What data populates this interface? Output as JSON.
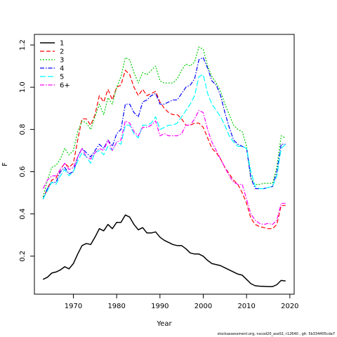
{
  "chart_data": {
    "type": "line",
    "title": "",
    "xlabel": "Year",
    "ylabel": "F",
    "xlim": [
      1961,
      2021
    ],
    "ylim": [
      0.02,
      1.25
    ],
    "xticks": [
      1970,
      1980,
      1990,
      2000,
      2010,
      2020
    ],
    "yticks": [
      0.2,
      0.4,
      0.6,
      0.8,
      1.0,
      1.2
    ],
    "ytick_labels": [
      "0.2",
      "0.4",
      "0.6",
      "0.8",
      "1.0",
      "1.2"
    ],
    "grid": false,
    "legend_position": "top-left",
    "x": [
      1963,
      1964,
      1965,
      1966,
      1967,
      1968,
      1969,
      1970,
      1971,
      1972,
      1973,
      1974,
      1975,
      1976,
      1977,
      1978,
      1979,
      1980,
      1981,
      1982,
      1983,
      1984,
      1985,
      1986,
      1987,
      1988,
      1989,
      1990,
      1991,
      1992,
      1993,
      1994,
      1995,
      1996,
      1997,
      1998,
      1999,
      2000,
      2001,
      2002,
      2003,
      2004,
      2005,
      2006,
      2007,
      2008,
      2009,
      2010,
      2011,
      2012,
      2013,
      2014,
      2015,
      2016,
      2017,
      2018,
      2019
    ],
    "series": [
      {
        "name": "1",
        "color": "#000000",
        "dash": "solid",
        "width": 1.5,
        "values": [
          0.09,
          0.1,
          0.12,
          0.125,
          0.135,
          0.15,
          0.14,
          0.165,
          0.21,
          0.25,
          0.26,
          0.255,
          0.29,
          0.33,
          0.32,
          0.35,
          0.33,
          0.36,
          0.36,
          0.395,
          0.385,
          0.35,
          0.325,
          0.335,
          0.31,
          0.31,
          0.315,
          0.29,
          0.275,
          0.265,
          0.255,
          0.25,
          0.25,
          0.235,
          0.215,
          0.21,
          0.21,
          0.2,
          0.18,
          0.165,
          0.16,
          0.155,
          0.145,
          0.135,
          0.125,
          0.115,
          0.11,
          0.09,
          0.07,
          0.06,
          0.058,
          0.057,
          0.056,
          0.056,
          0.065,
          0.085,
          0.082
        ]
      },
      {
        "name": "2",
        "color": "#ff0000",
        "dash": "6,3",
        "width": 1.2,
        "values": [
          0.47,
          0.52,
          0.56,
          0.57,
          0.61,
          0.64,
          0.62,
          0.64,
          0.75,
          0.85,
          0.85,
          0.82,
          0.87,
          0.96,
          0.93,
          0.99,
          0.94,
          1.0,
          1.01,
          1.08,
          1.06,
          1.0,
          0.96,
          0.99,
          0.96,
          0.97,
          0.98,
          0.93,
          0.9,
          0.88,
          0.87,
          0.87,
          0.85,
          0.82,
          0.82,
          0.83,
          0.83,
          0.81,
          0.76,
          0.71,
          0.69,
          0.66,
          0.62,
          0.59,
          0.56,
          0.54,
          0.5,
          0.45,
          0.38,
          0.35,
          0.34,
          0.335,
          0.33,
          0.33,
          0.35,
          0.44,
          0.44
        ]
      },
      {
        "name": "3",
        "color": "#00cd00",
        "dash": "2,2",
        "width": 1.2,
        "values": [
          0.48,
          0.56,
          0.62,
          0.63,
          0.66,
          0.71,
          0.68,
          0.7,
          0.79,
          0.84,
          0.83,
          0.8,
          0.86,
          0.92,
          0.87,
          0.95,
          0.92,
          1.0,
          1.05,
          1.14,
          1.13,
          1.07,
          1.02,
          1.07,
          1.06,
          1.08,
          1.1,
          1.03,
          1.02,
          1.02,
          1.02,
          1.04,
          1.08,
          1.11,
          1.1,
          1.12,
          1.19,
          1.18,
          1.1,
          1.05,
          1.02,
          0.98,
          0.92,
          0.87,
          0.82,
          0.8,
          0.79,
          0.72,
          0.57,
          0.54,
          0.54,
          0.545,
          0.545,
          0.545,
          0.62,
          0.77,
          0.76
        ]
      },
      {
        "name": "4",
        "color": "#0000ff",
        "dash": "6,2,1.5,2",
        "width": 1.2,
        "values": [
          0.47,
          0.52,
          0.55,
          0.55,
          0.6,
          0.62,
          0.59,
          0.6,
          0.67,
          0.71,
          0.69,
          0.67,
          0.7,
          0.73,
          0.71,
          0.75,
          0.72,
          0.78,
          0.8,
          0.92,
          0.92,
          0.88,
          0.86,
          0.93,
          0.94,
          0.96,
          0.97,
          0.92,
          0.92,
          0.93,
          0.94,
          0.94,
          0.97,
          1.0,
          1.01,
          1.04,
          1.13,
          1.14,
          1.09,
          1.03,
          1.01,
          0.96,
          0.88,
          0.81,
          0.75,
          0.73,
          0.72,
          0.71,
          0.57,
          0.52,
          0.52,
          0.52,
          0.525,
          0.53,
          0.6,
          0.73,
          0.73
        ]
      },
      {
        "name": "5",
        "color": "#00ffff",
        "dash": "8,3",
        "width": 1.2,
        "values": [
          0.47,
          0.51,
          0.55,
          0.54,
          0.58,
          0.61,
          0.58,
          0.6,
          0.65,
          0.69,
          0.67,
          0.64,
          0.69,
          0.7,
          0.68,
          0.72,
          0.7,
          0.74,
          0.73,
          0.82,
          0.82,
          0.78,
          0.76,
          0.82,
          0.82,
          0.83,
          0.86,
          0.8,
          0.81,
          0.82,
          0.82,
          0.83,
          0.86,
          0.89,
          0.92,
          0.96,
          1.05,
          1.06,
          0.97,
          0.92,
          0.89,
          0.86,
          0.82,
          0.77,
          0.74,
          0.72,
          0.72,
          0.71,
          0.6,
          0.53,
          0.52,
          0.52,
          0.525,
          0.53,
          0.58,
          0.71,
          0.73
        ]
      },
      {
        "name": "6+",
        "color": "#ff00ff",
        "dash": "6,2,1.5,2",
        "width": 1.2,
        "values": [
          0.52,
          0.56,
          0.58,
          0.58,
          0.61,
          0.64,
          0.61,
          0.62,
          0.67,
          0.71,
          0.67,
          0.66,
          0.69,
          0.71,
          0.7,
          0.75,
          0.7,
          0.74,
          0.75,
          0.84,
          0.83,
          0.79,
          0.77,
          0.81,
          0.81,
          0.82,
          0.84,
          0.77,
          0.78,
          0.77,
          0.77,
          0.77,
          0.78,
          0.82,
          0.82,
          0.85,
          0.89,
          0.88,
          0.8,
          0.74,
          0.7,
          0.66,
          0.62,
          0.58,
          0.55,
          0.54,
          0.54,
          0.47,
          0.4,
          0.37,
          0.355,
          0.35,
          0.355,
          0.35,
          0.37,
          0.45,
          0.45
        ]
      }
    ]
  },
  "footer": {
    "caption": "stockassessment.org, nscod20_ass02, r12640 , git: 5b334405cda7"
  }
}
